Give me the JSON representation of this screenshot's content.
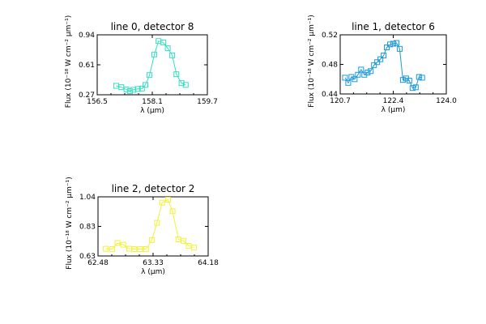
{
  "chart_data": [
    {
      "type": "line",
      "title": "line 0, detector 8",
      "xlabel": "λ (μm)",
      "ylabel": "Flux (10⁻¹⁸ W cm⁻² μm⁻¹)",
      "xlim": [
        156.5,
        159.7
      ],
      "ylim": [
        0.27,
        0.94
      ],
      "xticks": [
        "156.5",
        "158.1",
        "159.7"
      ],
      "yticks": [
        "0.27",
        "0.61",
        "0.94"
      ],
      "color": "#33e0c0",
      "marker": "square",
      "x": [
        157.05,
        157.2,
        157.35,
        157.45,
        157.55,
        157.68,
        157.8,
        157.9,
        158.02,
        158.16,
        158.28,
        158.42,
        158.55,
        158.68,
        158.8,
        158.95,
        159.07
      ],
      "y": [
        0.37,
        0.355,
        0.33,
        0.31,
        0.325,
        0.335,
        0.34,
        0.38,
        0.49,
        0.72,
        0.87,
        0.855,
        0.79,
        0.71,
        0.5,
        0.4,
        0.38
      ]
    },
    {
      "type": "line",
      "title": "line 1, detector 6",
      "xlabel": "λ (μm)",
      "ylabel": "Flux (10⁻¹⁸ W cm⁻² μm⁻¹)",
      "xlim": [
        120.7,
        124.0
      ],
      "ylim": [
        0.44,
        0.52
      ],
      "xticks": [
        "120.7",
        "122.4",
        "124.0"
      ],
      "yticks": [
        "0.44",
        "0.48",
        "0.52"
      ],
      "color": "#1e9ad6",
      "marker": "square",
      "x": [
        120.85,
        120.95,
        121.05,
        121.15,
        121.25,
        121.35,
        121.45,
        121.55,
        121.65,
        121.75,
        121.85,
        121.95,
        122.05,
        122.15,
        122.25,
        122.35,
        122.45,
        122.55,
        122.65,
        122.75,
        122.85,
        122.95,
        123.05,
        123.15,
        123.25
      ],
      "y": [
        0.462,
        0.455,
        0.463,
        0.46,
        0.466,
        0.473,
        0.466,
        0.469,
        0.471,
        0.479,
        0.483,
        0.487,
        0.492,
        0.503,
        0.507,
        0.508,
        0.509,
        0.501,
        0.459,
        0.461,
        0.458,
        0.448,
        0.449,
        0.463,
        0.462
      ]
    },
    {
      "type": "line",
      "title": "line 2, detector 2",
      "xlabel": "λ (μm)",
      "ylabel": "Flux (10⁻¹⁸ W cm⁻² μm⁻¹)",
      "xlim": [
        62.48,
        64.18
      ],
      "ylim": [
        0.63,
        1.04
      ],
      "xticks": [
        "62.48",
        "63.33",
        "64.18"
      ],
      "yticks": [
        "0.63",
        "0.83",
        "1.04"
      ],
      "color": "#f2f23a",
      "marker": "square",
      "x": [
        62.6,
        62.7,
        62.78,
        62.87,
        62.96,
        63.04,
        63.13,
        63.22,
        63.31,
        63.39,
        63.47,
        63.56,
        63.63,
        63.72,
        63.8,
        63.88,
        63.96
      ],
      "y": [
        0.68,
        0.678,
        0.72,
        0.708,
        0.68,
        0.678,
        0.678,
        0.678,
        0.74,
        0.86,
        1.0,
        1.02,
        0.94,
        0.745,
        0.735,
        0.7,
        0.688
      ]
    }
  ]
}
